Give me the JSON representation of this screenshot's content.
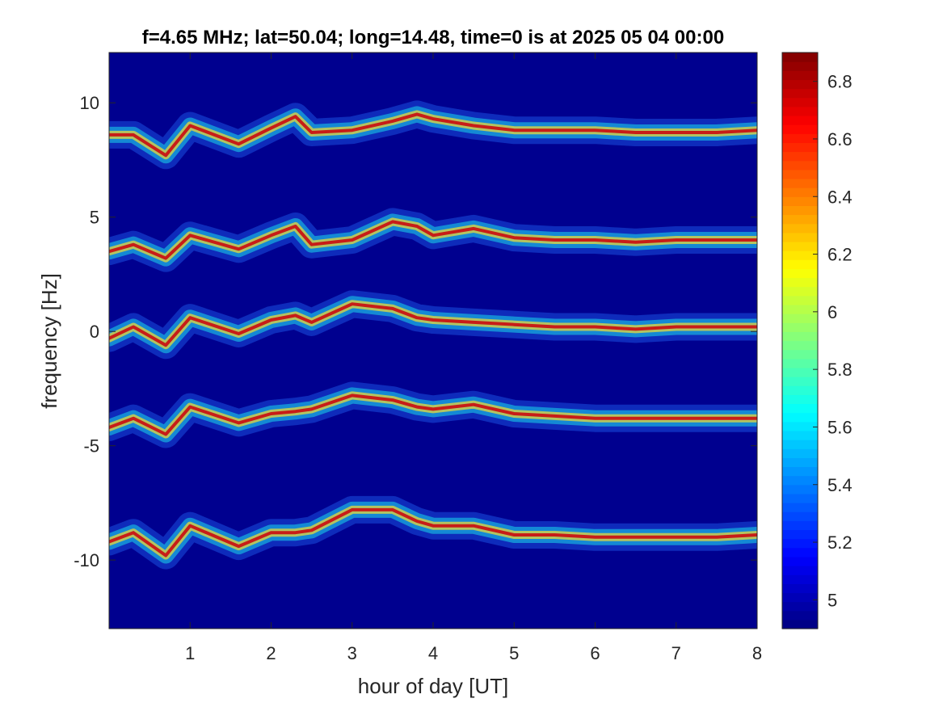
{
  "chart_data": {
    "type": "heatmap",
    "title": "f=4.65 MHz;  lat=50.04; long=14.48, time=0 is at 2025 05 04 00:00",
    "xlabel": "hour of day [UT]",
    "ylabel": "frequency [Hz]",
    "xlim": [
      0.0,
      8.0
    ],
    "ylim": [
      -13.0,
      12.2
    ],
    "x_ticks": [
      1,
      2,
      3,
      4,
      5,
      6,
      7,
      8
    ],
    "x_tick_labels": [
      "1",
      "2",
      "3",
      "4",
      "5",
      "6",
      "7",
      "8"
    ],
    "y_ticks": [
      10,
      5,
      0,
      -5,
      -10
    ],
    "y_tick_labels": [
      "10",
      "5",
      "0",
      "-5",
      "-10"
    ],
    "colorbar": {
      "range": [
        4.9,
        6.9
      ],
      "ticks": [
        6.8,
        6.6,
        6.4,
        6.2,
        6.0,
        5.8,
        5.6,
        5.4,
        5.2,
        5.0
      ],
      "tick_labels": [
        "6.8",
        "6.6",
        "6.4",
        "6.2",
        "6",
        "5.8",
        "5.6",
        "5.4",
        "5.2",
        "5"
      ],
      "colormap": "jet"
    },
    "background_value": 4.9,
    "grid": false,
    "traces": [
      {
        "center": 8.6,
        "x": [
          0.0,
          0.3,
          0.7,
          1.0,
          1.6,
          2.0,
          2.3,
          2.5,
          3.0,
          3.5,
          3.8,
          4.0,
          4.5,
          5.0,
          5.5,
          6.0,
          6.5,
          7.0,
          7.5,
          8.0
        ],
        "y": [
          8.6,
          8.6,
          7.7,
          9.0,
          8.2,
          8.9,
          9.4,
          8.7,
          8.8,
          9.2,
          9.5,
          9.3,
          9.0,
          8.8,
          8.8,
          8.8,
          8.7,
          8.7,
          8.7,
          8.8
        ]
      },
      {
        "center": 4.0,
        "x": [
          0.0,
          0.3,
          0.7,
          1.0,
          1.6,
          2.0,
          2.3,
          2.5,
          3.0,
          3.5,
          3.8,
          4.0,
          4.5,
          5.0,
          5.5,
          6.0,
          6.5,
          7.0,
          7.5,
          8.0
        ],
        "y": [
          3.5,
          3.8,
          3.2,
          4.2,
          3.6,
          4.2,
          4.6,
          3.8,
          4.0,
          4.8,
          4.6,
          4.2,
          4.5,
          4.1,
          4.0,
          4.0,
          3.9,
          4.0,
          4.0,
          4.0
        ]
      },
      {
        "center": 0.0,
        "x": [
          0.0,
          0.3,
          0.7,
          1.0,
          1.6,
          2.0,
          2.3,
          2.5,
          3.0,
          3.5,
          3.8,
          4.0,
          4.5,
          5.0,
          5.5,
          6.0,
          6.5,
          7.0,
          7.5,
          8.0
        ],
        "y": [
          -0.3,
          0.2,
          -0.6,
          0.6,
          -0.1,
          0.5,
          0.7,
          0.4,
          1.2,
          1.0,
          0.6,
          0.5,
          0.4,
          0.3,
          0.2,
          0.2,
          0.1,
          0.2,
          0.2,
          0.2
        ]
      },
      {
        "center": -4.0,
        "x": [
          0.0,
          0.3,
          0.7,
          1.0,
          1.6,
          2.0,
          2.3,
          2.5,
          3.0,
          3.5,
          3.8,
          4.0,
          4.5,
          5.0,
          5.5,
          6.0,
          6.5,
          7.0,
          7.5,
          8.0
        ],
        "y": [
          -4.2,
          -3.8,
          -4.5,
          -3.3,
          -4.0,
          -3.6,
          -3.5,
          -3.4,
          -2.8,
          -3.0,
          -3.3,
          -3.4,
          -3.2,
          -3.6,
          -3.7,
          -3.8,
          -3.8,
          -3.8,
          -3.8,
          -3.8
        ]
      },
      {
        "center": -9.0,
        "x": [
          0.0,
          0.3,
          0.7,
          1.0,
          1.6,
          2.0,
          2.3,
          2.5,
          3.0,
          3.5,
          3.8,
          4.0,
          4.5,
          5.0,
          5.5,
          6.0,
          6.5,
          7.0,
          7.5,
          8.0
        ],
        "y": [
          -9.2,
          -8.8,
          -9.8,
          -8.5,
          -9.4,
          -8.8,
          -8.8,
          -8.7,
          -7.8,
          -7.8,
          -8.3,
          -8.5,
          -8.5,
          -8.9,
          -8.9,
          -9.0,
          -9.0,
          -9.0,
          -9.0,
          -8.9
        ]
      }
    ]
  }
}
